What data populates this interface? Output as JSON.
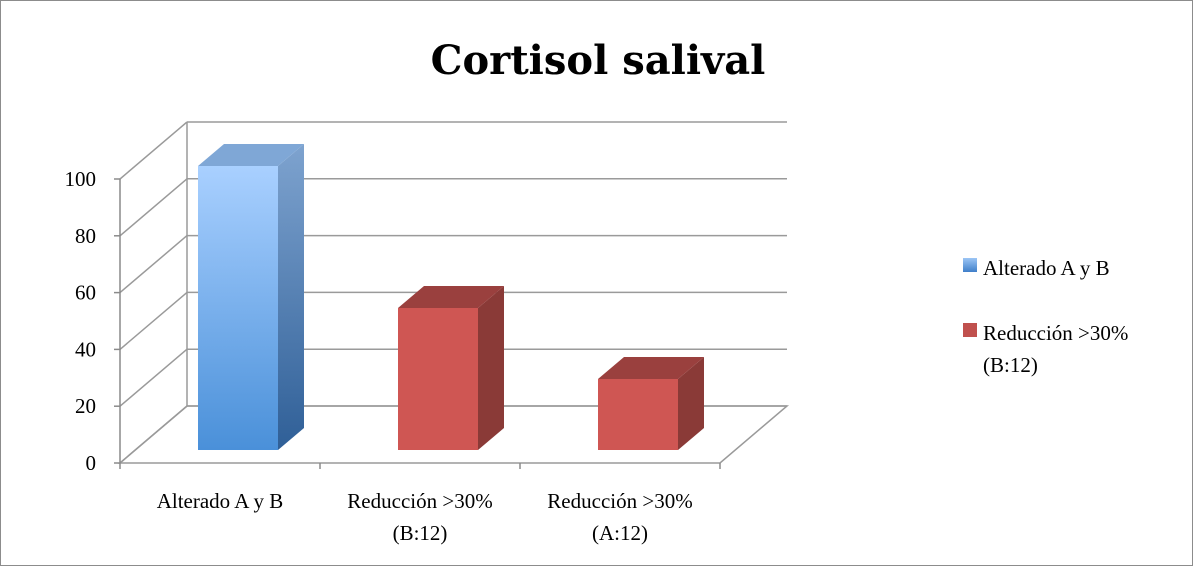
{
  "chart_data": {
    "type": "bar",
    "title": "Cortisol salival",
    "xlabel": "",
    "ylabel": "",
    "ylim": [
      0,
      100
    ],
    "yticks": [
      "0",
      "20",
      "40",
      "60",
      "80",
      "100"
    ],
    "grid": true,
    "legend_position": "right",
    "categories": [
      [
        "Alterado A y B"
      ],
      [
        "Reducción >30%",
        "(B:12)"
      ],
      [
        "Reducción >30%",
        "(A:12)"
      ]
    ],
    "values": [
      100,
      50,
      25
    ],
    "bar_colors": [
      "#5b9bd5",
      "#c0504d",
      "#c0504d"
    ],
    "legend": [
      {
        "lines": [
          "Alterado A y B"
        ],
        "color": "#4f8fdc"
      },
      {
        "lines": [
          "Reducción >30%",
          "(B:12)"
        ],
        "color": "#c0504d"
      }
    ]
  }
}
